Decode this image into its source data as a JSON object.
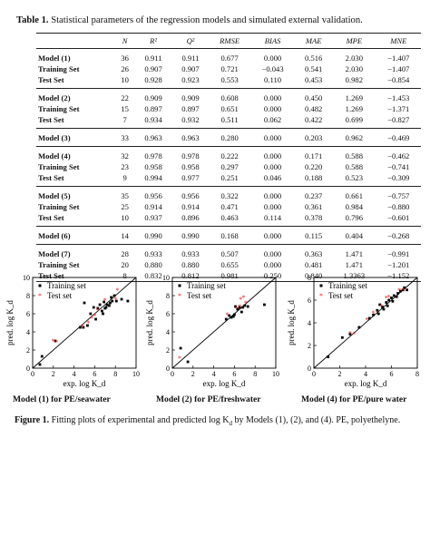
{
  "table": {
    "caption_label": "Table 1.",
    "caption_text": "Statistical parameters of the regression models and simulated external validation.",
    "columns": [
      "",
      "N",
      "R²",
      "Q²",
      "RMSE",
      "BIAS",
      "MAE",
      "MPE",
      "MNE"
    ],
    "rows": [
      {
        "label": "Model (1)",
        "N": "36",
        "R2": "0.911",
        "Q2": "0.911",
        "RMSE": "0.677",
        "BIAS": "0.000",
        "MAE": "0.516",
        "MPE": "2.030",
        "MNE": "−1.407"
      },
      {
        "label": "Training Set",
        "N": "26",
        "R2": "0.907",
        "Q2": "0.907",
        "RMSE": "0.721",
        "BIAS": "−0.043",
        "MAE": "0.541",
        "MPE": "2.030",
        "MNE": "−1.407"
      },
      {
        "label": "Test Set",
        "N": "10",
        "R2": "0.928",
        "Q2": "0.923",
        "RMSE": "0.553",
        "BIAS": "0.110",
        "MAE": "0.453",
        "MPE": "0.982",
        "MNE": "−0.854"
      },
      {
        "label": "Model (2)",
        "N": "22",
        "R2": "0.909",
        "Q2": "0.909",
        "RMSE": "0.608",
        "BIAS": "0.000",
        "MAE": "0.450",
        "MPE": "1.269",
        "MNE": "−1.453"
      },
      {
        "label": "Training Set",
        "N": "15",
        "R2": "0.897",
        "Q2": "0.897",
        "RMSE": "0.651",
        "BIAS": "0.000",
        "MAE": "0.482",
        "MPE": "1.269",
        "MNE": "−1.371"
      },
      {
        "label": "Test Set",
        "N": "7",
        "R2": "0.934",
        "Q2": "0.932",
        "RMSE": "0.511",
        "BIAS": "0.062",
        "MAE": "0.422",
        "MPE": "0.699",
        "MNE": "−0.827"
      },
      {
        "label": "Model (3)",
        "N": "33",
        "R2": "0.963",
        "Q2": "0.963",
        "RMSE": "0.280",
        "BIAS": "0.000",
        "MAE": "0.203",
        "MPE": "0.962",
        "MNE": "−0.469"
      },
      {
        "label": "Model (4)",
        "N": "32",
        "R2": "0.978",
        "Q2": "0.978",
        "RMSE": "0.222",
        "BIAS": "0.000",
        "MAE": "0.171",
        "MPE": "0.588",
        "MNE": "−0.462"
      },
      {
        "label": "Training Set",
        "N": "23",
        "R2": "0.958",
        "Q2": "0.958",
        "RMSE": "0.297",
        "BIAS": "0.000",
        "MAE": "0.220",
        "MPE": "0.588",
        "MNE": "−0.741"
      },
      {
        "label": "Test Set",
        "N": "9",
        "R2": "0.994",
        "Q2": "0.977",
        "RMSE": "0.251",
        "BIAS": "0.046",
        "MAE": "0.188",
        "MPE": "0.523",
        "MNE": "−0.309"
      },
      {
        "label": "Model (5)",
        "N": "35",
        "R2": "0.956",
        "Q2": "0.956",
        "RMSE": "0.322",
        "BIAS": "0.000",
        "MAE": "0.237",
        "MPE": "0.661",
        "MNE": "−0.757"
      },
      {
        "label": "Training Set",
        "N": "25",
        "R2": "0.914",
        "Q2": "0.914",
        "RMSE": "0.471",
        "BIAS": "0.000",
        "MAE": "0.361",
        "MPE": "0.984",
        "MNE": "−0.880"
      },
      {
        "label": "Test Set",
        "N": "10",
        "R2": "0.937",
        "Q2": "0.896",
        "RMSE": "0.463",
        "BIAS": "0.114",
        "MAE": "0.378",
        "MPE": "0.796",
        "MNE": "−0.601"
      },
      {
        "label": "Model (6)",
        "N": "14",
        "R2": "0.990",
        "Q2": "0.990",
        "RMSE": "0.168",
        "BIAS": "0.000",
        "MAE": "0.115",
        "MPE": "0.404",
        "MNE": "−0.268"
      },
      {
        "label": "Model (7)",
        "N": "28",
        "R2": "0.933",
        "Q2": "0.933",
        "RMSE": "0.507",
        "BIAS": "0.000",
        "MAE": "0.363",
        "MPE": "1.471",
        "MNE": "−0.991"
      },
      {
        "label": "Training Set",
        "N": "20",
        "R2": "0.880",
        "Q2": "0.880",
        "RMSE": "0.655",
        "BIAS": "0.000",
        "MAE": "0.481",
        "MPE": "1.471",
        "MNE": "−1.201"
      },
      {
        "label": "Test Set",
        "N": "8",
        "R2": "0.832",
        "Q2": "0.812",
        "RMSE": "0.981",
        "BIAS": "0.250",
        "MAE": "0.840",
        "MPE": "1.3363",
        "MNE": "−1.152"
      }
    ]
  },
  "figure": {
    "caption_label": "Figure 1.",
    "caption_text": "Fitting plots of experimental and predicted log K",
    "caption_sub": "d",
    "caption_tail": " by Models (1), (2), and (4). PE, polyethelyne."
  },
  "colors": {
    "training": "#000000",
    "test": "#e8201e",
    "line": "#000000",
    "frame": "#000000"
  },
  "chart_data": [
    {
      "type": "scatter",
      "title": "Model (1) for PE/seawater",
      "xlabel": "exp. log K_d",
      "ylabel": "pred. log K_d",
      "xlim": [
        0,
        10
      ],
      "ylim": [
        0,
        10
      ],
      "x_ticks": [
        0,
        2,
        4,
        6,
        8,
        10
      ],
      "y_ticks": [
        0,
        2,
        4,
        6,
        8,
        10
      ],
      "legend": "top-left",
      "series": [
        {
          "name": "Training set",
          "marker": "square",
          "color": "#000000",
          "points": [
            [
              0.7,
              0.4
            ],
            [
              0.9,
              1.3
            ],
            [
              2.2,
              3.0
            ],
            [
              4.6,
              4.5
            ],
            [
              4.9,
              4.5
            ],
            [
              5.0,
              7.2
            ],
            [
              5.3,
              4.7
            ],
            [
              5.6,
              6.0
            ],
            [
              5.9,
              6.7
            ],
            [
              6.1,
              5.4
            ],
            [
              6.3,
              6.6
            ],
            [
              6.5,
              7.0
            ],
            [
              6.7,
              6.3
            ],
            [
              6.8,
              6.0
            ],
            [
              6.9,
              7.3
            ],
            [
              7.0,
              6.6
            ],
            [
              7.1,
              6.7
            ],
            [
              7.2,
              7.0
            ],
            [
              7.4,
              6.9
            ],
            [
              7.5,
              7.2
            ],
            [
              7.6,
              7.8
            ],
            [
              7.7,
              7.4
            ],
            [
              7.9,
              8.0
            ],
            [
              8.1,
              7.4
            ],
            [
              8.6,
              7.6
            ],
            [
              9.2,
              7.4
            ]
          ]
        },
        {
          "name": "Test set",
          "marker": "star",
          "color": "#e8201e",
          "points": [
            [
              2.0,
              3.0
            ],
            [
              2.3,
              2.9
            ],
            [
              4.8,
              4.6
            ],
            [
              5.4,
              5.0
            ],
            [
              5.7,
              5.5
            ],
            [
              6.0,
              5.8
            ],
            [
              6.3,
              6.4
            ],
            [
              7.0,
              7.5
            ],
            [
              8.0,
              7.6
            ],
            [
              8.2,
              8.6
            ]
          ]
        }
      ]
    },
    {
      "type": "scatter",
      "title": "Model (2) for PE/freshwater",
      "xlabel": "exp. log K_d",
      "ylabel": "pred. log K_d",
      "xlim": [
        0,
        10
      ],
      "ylim": [
        0,
        10
      ],
      "x_ticks": [
        0,
        2,
        4,
        6,
        8,
        10
      ],
      "y_ticks": [
        0,
        2,
        4,
        6,
        8,
        10
      ],
      "legend": "top-left",
      "series": [
        {
          "name": "Training set",
          "marker": "square",
          "color": "#000000",
          "points": [
            [
              0.8,
              2.2
            ],
            [
              1.5,
              0.7
            ],
            [
              5.2,
              5.4
            ],
            [
              5.5,
              5.8
            ],
            [
              5.7,
              5.6
            ],
            [
              5.9,
              5.7
            ],
            [
              6.0,
              5.9
            ],
            [
              6.1,
              6.8
            ],
            [
              6.3,
              6.5
            ],
            [
              6.5,
              6.7
            ],
            [
              6.7,
              6.2
            ],
            [
              6.8,
              6.7
            ],
            [
              7.0,
              6.9
            ],
            [
              7.3,
              6.8
            ],
            [
              8.9,
              7.0
            ]
          ]
        },
        {
          "name": "Test set",
          "marker": "star",
          "color": "#e8201e",
          "points": [
            [
              0.7,
              1.1
            ],
            [
              5.3,
              5.9
            ],
            [
              6.2,
              6.6
            ],
            [
              6.5,
              6.8
            ],
            [
              7.1,
              7.2
            ],
            [
              6.6,
              7.6
            ],
            [
              6.9,
              7.8
            ]
          ]
        }
      ]
    },
    {
      "type": "scatter",
      "title": "Model (4) for PE/pure water",
      "xlabel": "exp. log K_d",
      "ylabel": "pred. log K_d",
      "xlim": [
        0,
        8
      ],
      "ylim": [
        0,
        8
      ],
      "x_ticks": [
        0,
        2,
        4,
        6,
        8
      ],
      "y_ticks": [
        0,
        2,
        4,
        6,
        8
      ],
      "legend": "top-left",
      "series": [
        {
          "name": "Training set",
          "marker": "square",
          "color": "#000000",
          "points": [
            [
              1.1,
              1.0
            ],
            [
              2.2,
              2.7
            ],
            [
              2.8,
              3.0
            ],
            [
              3.5,
              3.6
            ],
            [
              4.3,
              4.4
            ],
            [
              4.6,
              4.7
            ],
            [
              4.9,
              5.1
            ],
            [
              5.0,
              4.8
            ],
            [
              5.1,
              5.6
            ],
            [
              5.3,
              5.4
            ],
            [
              5.4,
              5.2
            ],
            [
              5.6,
              5.8
            ],
            [
              5.7,
              5.5
            ],
            [
              5.8,
              6.0
            ],
            [
              6.0,
              6.2
            ],
            [
              6.1,
              5.9
            ],
            [
              6.2,
              6.4
            ],
            [
              6.4,
              6.3
            ],
            [
              6.5,
              6.6
            ],
            [
              6.7,
              6.8
            ],
            [
              6.9,
              6.9
            ],
            [
              7.0,
              7.1
            ],
            [
              7.2,
              6.9
            ]
          ]
        },
        {
          "name": "Test set",
          "marker": "star",
          "color": "#e8201e",
          "points": [
            [
              2.8,
              3.1
            ],
            [
              3.1,
              3.0
            ],
            [
              4.1,
              4.3
            ],
            [
              4.6,
              4.9
            ],
            [
              5.2,
              5.5
            ],
            [
              5.6,
              6.2
            ],
            [
              5.8,
              6.3
            ],
            [
              6.6,
              6.9
            ],
            [
              6.9,
              6.9
            ]
          ]
        }
      ]
    }
  ]
}
